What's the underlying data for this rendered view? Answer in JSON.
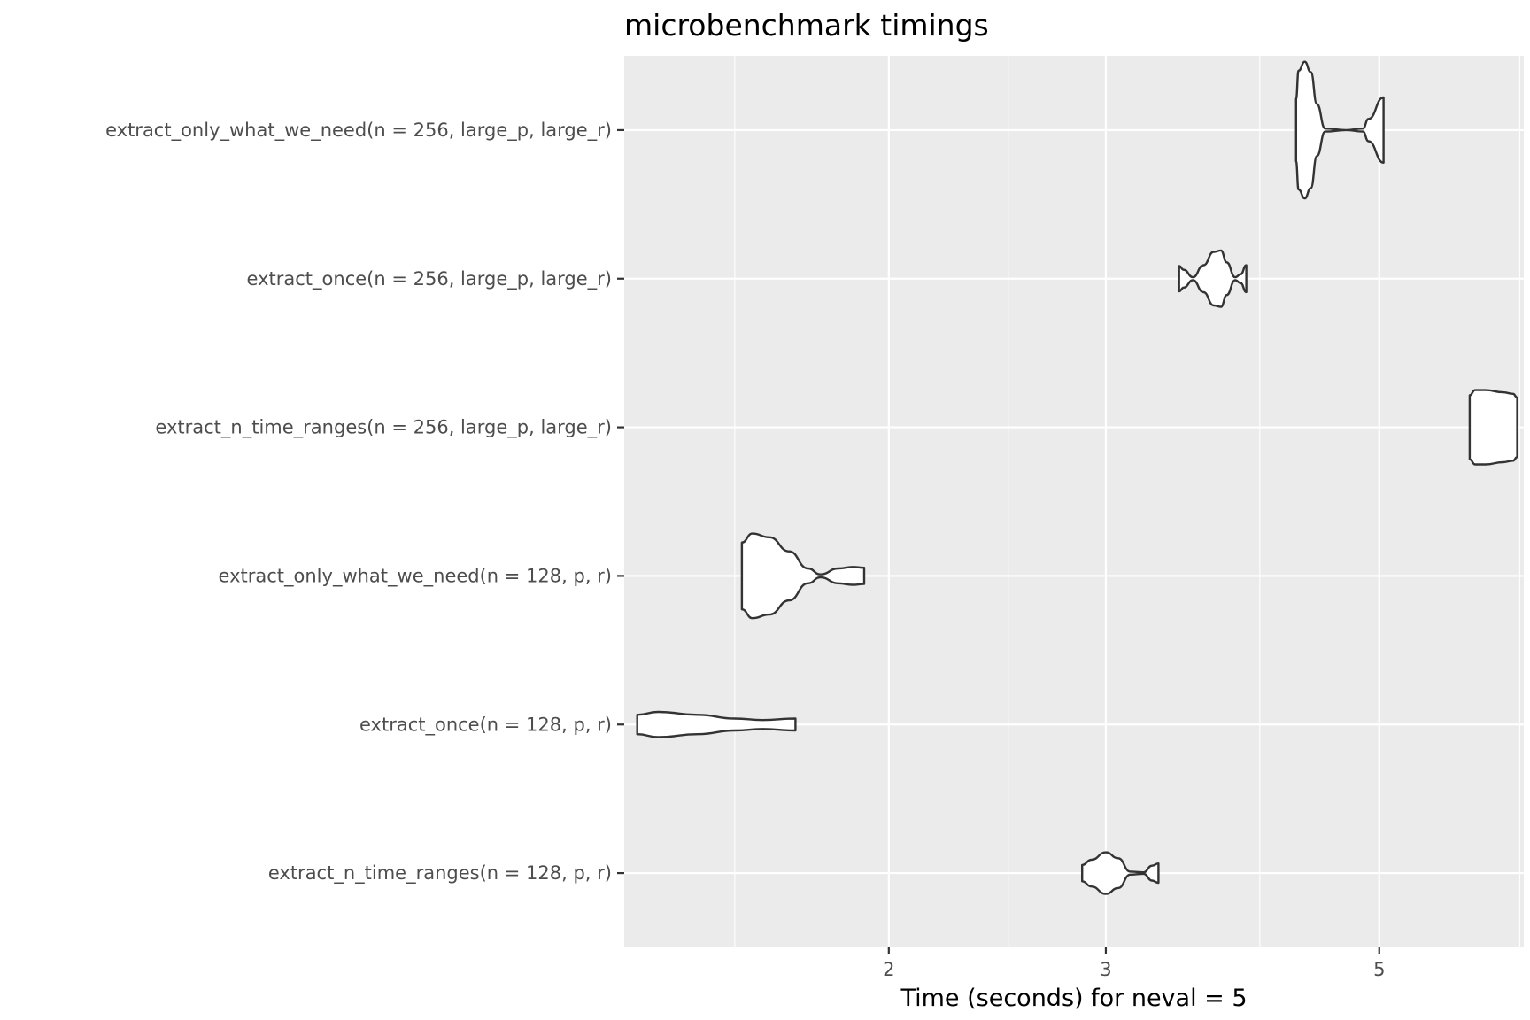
{
  "chart_data": {
    "type": "violin",
    "title": "microbenchmark timings",
    "xlabel": "Time (seconds) for neval = 5",
    "ylabel": "",
    "x_scale": "log",
    "xlim": [
      1.22,
      6.55
    ],
    "x_ticks": [
      {
        "value": 2,
        "label": "2"
      },
      {
        "value": 3,
        "label": "3"
      },
      {
        "value": 5,
        "label": "5"
      }
    ],
    "x_minor_ticks": [
      1.5,
      2.5,
      4,
      6.5
    ],
    "grid": true,
    "categories": [
      "extract_only_what_we_need(n = 256, large_p, large_r)",
      "extract_once(n = 256, large_p, large_r)",
      "extract_n_time_ranges(n = 256, large_p, large_r)",
      "extract_only_what_we_need(n = 128, p, r)",
      "extract_once(n = 128, p, r)",
      "extract_n_time_ranges(n = 128, p, r)"
    ],
    "series": [
      {
        "category": "extract_only_what_we_need(n = 256, large_p, large_r)",
        "profile": [
          [
            4.28,
            0.42
          ],
          [
            4.3,
            0.8
          ],
          [
            4.35,
            0.92
          ],
          [
            4.4,
            0.78
          ],
          [
            4.45,
            0.35
          ],
          [
            4.52,
            0.02
          ],
          [
            4.7,
            0.0
          ],
          [
            4.85,
            0.02
          ],
          [
            4.9,
            0.15
          ],
          [
            5.04,
            0.44
          ]
        ]
      },
      {
        "category": "extract_once(n = 256, large_p, large_r)",
        "profile": [
          [
            3.44,
            0.17
          ],
          [
            3.47,
            0.12
          ],
          [
            3.53,
            0.02
          ],
          [
            3.6,
            0.18
          ],
          [
            3.67,
            0.36
          ],
          [
            3.72,
            0.38
          ],
          [
            3.76,
            0.22
          ],
          [
            3.82,
            0.02
          ],
          [
            3.86,
            0.06
          ],
          [
            3.9,
            0.18
          ]
        ]
      },
      {
        "category": "extract_n_time_ranges(n = 256, large_p, large_r)",
        "profile": [
          [
            5.92,
            0.43
          ],
          [
            5.98,
            0.5
          ],
          [
            6.1,
            0.5
          ],
          [
            6.3,
            0.47
          ],
          [
            6.42,
            0.45
          ],
          [
            6.47,
            0.4
          ]
        ]
      },
      {
        "category": "extract_only_what_we_need(n = 128, p, r)",
        "profile": [
          [
            1.52,
            0.45
          ],
          [
            1.55,
            0.57
          ],
          [
            1.6,
            0.52
          ],
          [
            1.66,
            0.33
          ],
          [
            1.72,
            0.1
          ],
          [
            1.76,
            0.02
          ],
          [
            1.82,
            0.1
          ],
          [
            1.87,
            0.12
          ],
          [
            1.91,
            0.11
          ]
        ]
      },
      {
        "category": "extract_once(n = 128, p, r)",
        "profile": [
          [
            1.25,
            0.13
          ],
          [
            1.3,
            0.17
          ],
          [
            1.4,
            0.13
          ],
          [
            1.5,
            0.08
          ],
          [
            1.58,
            0.06
          ],
          [
            1.68,
            0.08
          ]
        ]
      },
      {
        "category": "extract_n_time_ranges(n = 128, p, r)",
        "profile": [
          [
            2.87,
            0.11
          ],
          [
            2.92,
            0.18
          ],
          [
            3.0,
            0.28
          ],
          [
            3.07,
            0.2
          ],
          [
            3.14,
            0.02
          ],
          [
            3.22,
            0.01
          ],
          [
            3.27,
            0.1
          ],
          [
            3.31,
            0.13
          ]
        ]
      }
    ]
  }
}
